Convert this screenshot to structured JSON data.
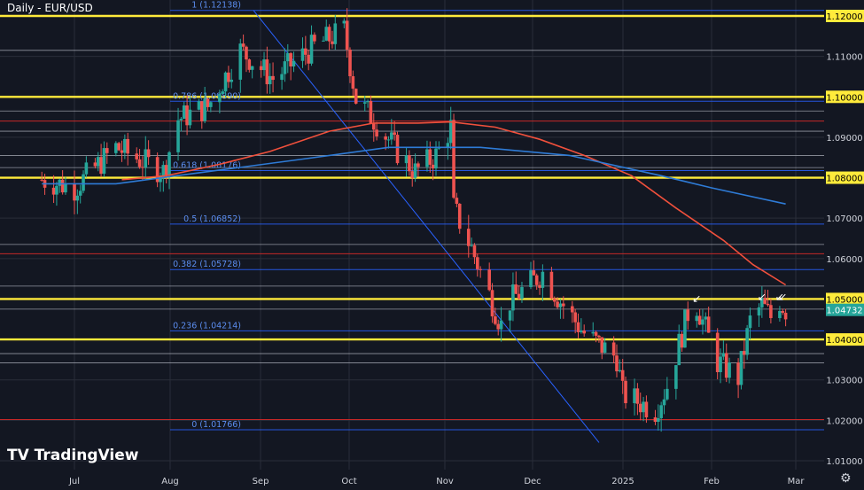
{
  "chart_title": "Daily - EUR/USD",
  "branding": "TradingView",
  "colors": {
    "background": "#131722",
    "grid": "#2a2e39",
    "bull": "#26a69a",
    "bear": "#ef5350",
    "ma_fast": "#f0503c",
    "ma_slow": "#2e7bd6",
    "fib": "#2962ff",
    "key_level": "#ffeb3b",
    "thin_line": "#c8ccd6",
    "red_line": "#c62828",
    "axis_text": "#d1d4dc",
    "price_tag_bg": "#26a69a"
  },
  "chart_data": {
    "type": "candlestick",
    "y_range": [
      1.005,
      1.1235
    ],
    "y_ticks": [
      "1.12000",
      "1.11000",
      "1.10000",
      "1.09000",
      "1.08000",
      "1.07000",
      "1.06000",
      "1.05000",
      "1.04000",
      "1.03000",
      "1.02000",
      "1.01000"
    ],
    "highlighted_ticks": [
      "1.12000",
      "1.10000",
      "1.08000",
      "1.05000",
      "1.04000"
    ],
    "x_ticks": [
      "Jul",
      "Aug",
      "Sep",
      "Oct",
      "Nov",
      "Dec",
      "2025",
      "Feb",
      "Mar"
    ],
    "current_price": "1.04732",
    "key_levels": [
      1.12,
      1.1,
      1.08,
      1.05,
      1.04
    ],
    "thin_levels": [
      1.1115,
      1.0965,
      1.0915,
      1.0855,
      1.0825,
      1.0635,
      1.0532,
      1.0475,
      1.0365,
      1.0342
    ],
    "red_levels": [
      1.094,
      1.0612,
      1.0202
    ],
    "fib_levels": [
      {
        "label": "1 (1.12138)",
        "value": 1.12138
      },
      {
        "label": "0.786 (1.09890)",
        "value": 1.0989
      },
      {
        "label": "0.618 (1.08176)",
        "value": 1.08176
      },
      {
        "label": "0.5 (1.06852)",
        "value": 1.06852
      },
      {
        "label": "0.382 (1.05728)",
        "value": 1.05728
      },
      {
        "label": "0.236 (1.04214)",
        "value": 1.04214
      },
      {
        "label": "0 (1.01766)",
        "value": 1.01766
      }
    ],
    "series": [
      {
        "points": [
          [
            "2024-06-20",
            1.0795
          ],
          [
            "2024-07-01",
            1.0775
          ],
          [
            "2024-07-15",
            1.0875
          ],
          [
            "2024-07-31",
            1.0815
          ],
          [
            "2024-08-05",
            1.0945
          ],
          [
            "2024-08-15",
            1.0975
          ],
          [
            "2024-08-26",
            1.1115
          ],
          [
            "2024-09-06",
            1.1045
          ],
          [
            "2024-09-20",
            1.1125
          ],
          [
            "2024-09-30",
            1.1165
          ],
          [
            "2024-10-04",
            1.0995
          ],
          [
            "2024-10-10",
            1.0945
          ],
          [
            "2024-10-18",
            1.0865
          ],
          [
            "2024-10-24",
            1.0815
          ],
          [
            "2024-10-31",
            1.0855
          ],
          [
            "2024-11-05",
            1.0925
          ],
          [
            "2024-11-06",
            1.0725
          ],
          [
            "2024-11-12",
            1.0625
          ],
          [
            "2024-11-22",
            1.0435
          ],
          [
            "2024-11-25",
            1.0495
          ],
          [
            "2024-12-06",
            1.0565
          ],
          [
            "2024-12-12",
            1.0495
          ],
          [
            "2024-12-20",
            1.0415
          ],
          [
            "2024-12-31",
            1.0355
          ],
          [
            "2025-01-02",
            1.0265
          ],
          [
            "2025-01-13",
            1.0225
          ],
          [
            "2025-01-17",
            1.0285
          ],
          [
            "2025-01-24",
            1.0465
          ],
          [
            "2025-01-27",
            1.0485
          ],
          [
            "2025-02-03",
            1.0345
          ],
          [
            "2025-02-10",
            1.0305
          ],
          [
            "2025-02-14",
            1.0445
          ],
          [
            "2025-02-18",
            1.0485
          ],
          [
            "2025-02-21",
            1.0455
          ],
          [
            "2025-02-24",
            1.0495
          ],
          [
            "2025-02-26",
            1.0473
          ]
        ]
      },
      {
        "points": [
          [
            "2024-07-17",
            1.0795
          ],
          [
            "2024-08-01",
            1.0805
          ],
          [
            "2024-08-20",
            1.0835
          ],
          [
            "2024-09-05",
            1.0865
          ],
          [
            "2024-09-25",
            1.0915
          ],
          [
            "2024-10-10",
            1.0935
          ],
          [
            "2024-10-25",
            1.0935
          ],
          [
            "2024-11-05",
            1.0938
          ],
          [
            "2024-11-20",
            1.0925
          ],
          [
            "2024-12-05",
            1.0895
          ],
          [
            "2024-12-20",
            1.0855
          ],
          [
            "2025-01-05",
            1.0805
          ],
          [
            "2025-01-20",
            1.0725
          ],
          [
            "2025-02-05",
            1.0645
          ],
          [
            "2025-02-15",
            1.0585
          ],
          [
            "2025-02-26",
            1.0535
          ]
        ]
      },
      {
        "points": [
          [
            "2024-06-20",
            1.0785
          ],
          [
            "2024-07-15",
            1.0785
          ],
          [
            "2024-08-15",
            1.0815
          ],
          [
            "2024-09-15",
            1.0845
          ],
          [
            "2024-10-15",
            1.0875
          ],
          [
            "2024-11-15",
            1.0875
          ],
          [
            "2024-12-15",
            1.0855
          ],
          [
            "2025-01-15",
            1.0805
          ],
          [
            "2025-02-01",
            1.0775
          ],
          [
            "2025-02-26",
            1.0735
          ]
        ]
      }
    ],
    "arrows": [
      {
        "x": "2025-01-27",
        "y": 1.0492
      },
      {
        "x": "2025-02-18",
        "y": 1.0497
      },
      {
        "x": "2025-02-24",
        "y": 1.0497
      },
      {
        "x": "2025-02-25",
        "y": 1.0497
      }
    ]
  }
}
